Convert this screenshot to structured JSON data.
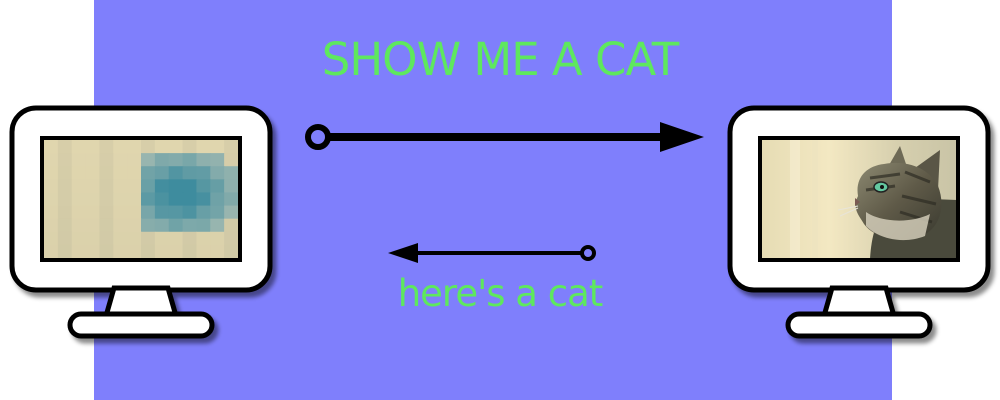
{
  "diagram": {
    "request_label": "SHOW ME A CAT",
    "reply_label": "here's a cat"
  },
  "icons": {
    "left_monitor": "monitor-icon",
    "right_monitor": "monitor-icon",
    "pixelated_cat": "pixelated-cat-image",
    "cat_photo": "cat-photo-image",
    "request_arrow": "arrow-right-icon",
    "reply_arrow": "arrow-left-icon"
  },
  "colors": {
    "panel": "#7f7ffc",
    "label": "#5ee85e",
    "outline": "#000000",
    "monitor_fill": "#ffffff",
    "screen_cream": "#efe2b4",
    "cat_teal": "#3e8c9e"
  }
}
